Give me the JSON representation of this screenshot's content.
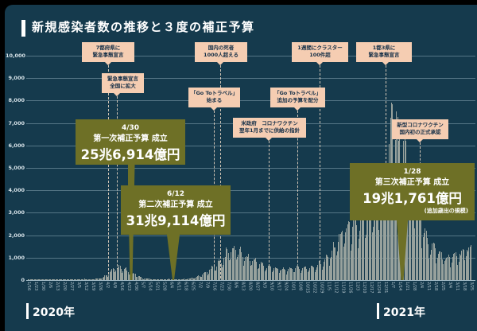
{
  "title": "新規感染者数の推移と３度の補正予算",
  "colors": {
    "background": "#153a4d",
    "frame": "#000000",
    "bar": "#98a29d",
    "event_box": "#f5cdb2",
    "event_text": "#163048",
    "budget_box": "#6e7026",
    "budget_text": "#ffffff",
    "grid": "#a5c0cc",
    "title_text": "#ffffff"
  },
  "chart_data": {
    "type": "bar",
    "title": "新規感染者数の推移と３度の補正予算",
    "xlabel": "",
    "ylabel": "",
    "ylim": [
      0,
      10000
    ],
    "grid": true,
    "y_ticks": [
      "10,000",
      "9,000",
      "8,000",
      "7,000",
      "6,000",
      "5,000",
      "4,000",
      "3,000",
      "2,000",
      "1,000",
      "0"
    ],
    "x_tick_labels": [
      "1/16",
      "1/23",
      "1/30",
      "2/6",
      "2/13",
      "2/20",
      "2/27",
      "3/5",
      "3/12",
      "3/19",
      "3/26",
      "4/2",
      "4/9",
      "4/16",
      "4/23",
      "4/30",
      "5/7",
      "5/14",
      "5/21",
      "5/28",
      "6/4",
      "6/11",
      "6/18",
      "6/25",
      "7/2",
      "7/9",
      "7/16",
      "7/23",
      "7/30",
      "8/6",
      "8/13",
      "8/20",
      "8/27",
      "9/3",
      "9/10",
      "9/17",
      "9/24",
      "10/1",
      "10/8",
      "10/15",
      "10/22",
      "10/29",
      "11/5",
      "11/12",
      "11/19",
      "11/26",
      "12/3",
      "12/10",
      "12/17",
      "12/24",
      "12/31",
      "1/7",
      "1/14",
      "1/21",
      "1/28",
      "2/4",
      "2/11",
      "2/18",
      "2/25",
      "3/4",
      "3/11",
      "3/18",
      "3/25"
    ],
    "weekly_values": [
      2,
      3,
      15,
      25,
      12,
      20,
      25,
      35,
      55,
      40,
      95,
      225,
      600,
      560,
      430,
      260,
      100,
      55,
      35,
      50,
      45,
      40,
      55,
      95,
      190,
      355,
      620,
      870,
      1350,
      1450,
      1150,
      980,
      870,
      650,
      600,
      530,
      470,
      550,
      600,
      570,
      620,
      760,
      1050,
      1600,
      2200,
      2450,
      2400,
      2800,
      3100,
      3700,
      4300,
      7800,
      6300,
      5200,
      4100,
      2600,
      1800,
      1400,
      1100,
      1000,
      1150,
      1300,
      1550
    ],
    "peak_value": 7900
  },
  "events": [
    {
      "lines": [
        "7都府県に",
        "緊急事態宣言"
      ]
    },
    {
      "lines": [
        "国内の死者",
        "1000人超える"
      ]
    },
    {
      "lines": [
        "1週間にクラスター",
        "100件超"
      ]
    },
    {
      "lines": [
        "1都3県に",
        "緊急事態宣言"
      ]
    },
    {
      "lines": [
        "緊急事態宣言",
        "全国に拡大"
      ]
    },
    {
      "lines": [
        "「Go Toトラベル」",
        "始まる"
      ]
    },
    {
      "lines": [
        "「Go Toトラベル」",
        "追加の予算を配分"
      ]
    },
    {
      "lines": [
        "米政府　コロナワクチン",
        "翌年1月までに供給の指針"
      ]
    },
    {
      "lines": [
        "新型コロナワクチン",
        "国内初の正式承認"
      ]
    }
  ],
  "budgets": [
    {
      "date": "4/30",
      "title": "第一次補正予算 成立",
      "amount": "25兆6,914億円",
      "note": ""
    },
    {
      "date": "6/12",
      "title": "第二次補正予算 成立",
      "amount": "31兆9,114億円",
      "note": ""
    },
    {
      "date": "1/28",
      "title": "第三次補正予算 成立",
      "amount": "19兆1,761億円",
      "note": "(追加歳出の規模)"
    }
  ],
  "years": [
    {
      "label": "2020年"
    },
    {
      "label": "2021年"
    }
  ]
}
